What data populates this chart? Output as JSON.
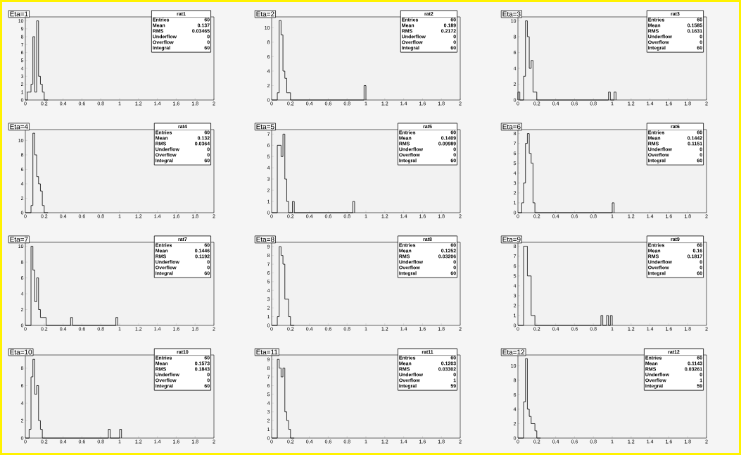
{
  "chart_data": [
    {
      "type": "histogram",
      "title": "Eta=1",
      "bins": [
        0,
        0.02,
        0.04,
        0.06,
        0.08,
        0.1,
        0.12,
        0.14,
        0.16,
        0.18,
        0.2,
        0.22,
        0.24
      ],
      "values": [
        0,
        1,
        1,
        2,
        8,
        1,
        10,
        3,
        2,
        1,
        0,
        0
      ],
      "xlim": [
        0,
        2
      ],
      "ylim": [
        0,
        10.5
      ],
      "xticks": [
        0,
        0.2,
        0.4,
        0.6,
        0.8,
        1,
        1.2,
        1.4,
        1.6,
        1.8,
        2
      ],
      "yticks": [
        0,
        1,
        2,
        3,
        4,
        5,
        6,
        7,
        8,
        9,
        10
      ],
      "annotations": [
        "rat1",
        "Entries",
        "60",
        "Mean",
        "0.137",
        "RMS",
        "0.03465",
        "Underflow",
        "0",
        "Overflow",
        "0",
        "Integral",
        "60"
      ]
    },
    {
      "type": "histogram",
      "title": "Eta=2",
      "bins": [
        0,
        0.02,
        0.04,
        0.06,
        0.08,
        0.1,
        0.12,
        0.14,
        0.16,
        0.18,
        0.2,
        0.22,
        0.24,
        0.98,
        1.0
      ],
      "values": [
        0,
        0,
        0,
        1,
        11,
        9,
        4,
        3,
        1,
        1,
        0,
        0,
        0,
        2
      ],
      "xlim": [
        0,
        2
      ],
      "ylim": [
        0,
        11.5
      ],
      "xticks": [
        0,
        0.2,
        0.4,
        0.6,
        0.8,
        1,
        1.2,
        1.4,
        1.6,
        1.8,
        2
      ],
      "yticks": [
        0,
        2,
        4,
        6,
        8,
        10
      ],
      "annotations": [
        "rat2",
        "Entries",
        "60",
        "Mean",
        "0.189",
        "RMS",
        "0.2172",
        "Underflow",
        "0",
        "Overflow",
        "0",
        "Integral",
        "60"
      ]
    },
    {
      "type": "histogram",
      "title": "Eta=3",
      "bins": [
        0,
        0.02,
        0.04,
        0.06,
        0.08,
        0.1,
        0.12,
        0.14,
        0.16,
        0.18,
        0.2,
        0.22,
        0.24,
        0.96,
        0.98,
        1.02,
        1.04
      ],
      "values": [
        1,
        0,
        0,
        3,
        10,
        8,
        4,
        5,
        1,
        1,
        0,
        0,
        0,
        1,
        0,
        1
      ],
      "xlim": [
        0,
        2
      ],
      "ylim": [
        0,
        10.5
      ],
      "xticks": [
        0,
        0.2,
        0.4,
        0.6,
        0.8,
        1,
        1.2,
        1.4,
        1.6,
        1.8,
        2
      ],
      "yticks": [
        0,
        2,
        4,
        6,
        8,
        10
      ],
      "annotations": [
        "rat3",
        "Entries",
        "60",
        "Mean",
        "0.1585",
        "RMS",
        "0.1631",
        "Underflow",
        "0",
        "Overflow",
        "0",
        "Integral",
        "60"
      ]
    },
    {
      "type": "histogram",
      "title": "Eta=4",
      "bins": [
        0,
        0.02,
        0.04,
        0.06,
        0.08,
        0.1,
        0.12,
        0.14,
        0.16,
        0.18,
        0.2,
        0.22,
        0.24
      ],
      "values": [
        0,
        0,
        0,
        1,
        11,
        8,
        5,
        4,
        3,
        1,
        0,
        0
      ],
      "xlim": [
        0,
        2
      ],
      "ylim": [
        0,
        11.5
      ],
      "xticks": [
        0,
        0.2,
        0.4,
        0.6,
        0.8,
        1,
        1.2,
        1.4,
        1.6,
        1.8,
        2
      ],
      "yticks": [
        0,
        2,
        4,
        6,
        8,
        10
      ],
      "annotations": [
        "rat4",
        "Entries",
        "60",
        "Mean",
        "0.132",
        "RMS",
        "0.0364",
        "Underflow",
        "0",
        "Overflow",
        "0",
        "Integral",
        "60"
      ]
    },
    {
      "type": "histogram",
      "title": "Eta=5",
      "bins": [
        0,
        0.02,
        0.04,
        0.06,
        0.08,
        0.1,
        0.12,
        0.14,
        0.16,
        0.18,
        0.2,
        0.22,
        0.24,
        0.86,
        0.88
      ],
      "values": [
        0,
        0,
        0,
        6,
        6,
        5,
        7,
        3,
        1,
        0,
        0,
        1,
        0,
        1
      ],
      "xlim": [
        0,
        2
      ],
      "ylim": [
        0,
        7.4
      ],
      "xticks": [
        0,
        0.2,
        0.4,
        0.6,
        0.8,
        1,
        1.2,
        1.4,
        1.6,
        1.8,
        2
      ],
      "yticks": [
        0,
        1,
        2,
        3,
        4,
        5,
        6,
        7
      ],
      "annotations": [
        "rat5",
        "Entries",
        "60",
        "Mean",
        "0.1409",
        "RMS",
        "0.09989",
        "Underflow",
        "0",
        "Overflow",
        "0",
        "Integral",
        "60"
      ]
    },
    {
      "type": "histogram",
      "title": "Eta=6",
      "bins": [
        0,
        0.02,
        0.04,
        0.06,
        0.08,
        0.1,
        0.12,
        0.14,
        0.16,
        0.18,
        0.2,
        0.22,
        0.24,
        1.0,
        1.02
      ],
      "values": [
        0,
        0,
        1,
        3,
        7,
        8,
        6,
        5,
        1,
        0,
        0,
        0,
        0,
        1
      ],
      "xlim": [
        0,
        2
      ],
      "ylim": [
        0,
        8.4
      ],
      "xticks": [
        0,
        0.2,
        0.4,
        0.6,
        0.8,
        1,
        1.2,
        1.4,
        1.6,
        1.8,
        2
      ],
      "yticks": [
        0,
        1,
        2,
        3,
        4,
        5,
        6,
        7,
        8
      ],
      "annotations": [
        "rat6",
        "Entries",
        "60",
        "Mean",
        "0.1442",
        "RMS",
        "0.1151",
        "Underflow",
        "0",
        "Overflow",
        "0",
        "Integral",
        "60"
      ]
    },
    {
      "type": "histogram",
      "title": "Eta=7",
      "bins": [
        0,
        0.02,
        0.04,
        0.06,
        0.08,
        0.1,
        0.12,
        0.14,
        0.16,
        0.18,
        0.2,
        0.22,
        0.24,
        0.48,
        0.5,
        0.96,
        0.98
      ],
      "values": [
        0,
        0,
        0,
        10,
        7,
        3,
        6,
        2,
        1,
        1,
        1,
        0,
        0,
        1,
        0,
        1
      ],
      "xlim": [
        0,
        2
      ],
      "ylim": [
        0,
        10.5
      ],
      "xticks": [
        0,
        0.2,
        0.4,
        0.6,
        0.8,
        1,
        1.2,
        1.4,
        1.6,
        1.8,
        2
      ],
      "yticks": [
        0,
        2,
        4,
        6,
        8,
        10
      ],
      "annotations": [
        "rat7",
        "Entries",
        "60",
        "Mean",
        "0.1446",
        "RMS",
        "0.1192",
        "Underflow",
        "0",
        "Overflow",
        "0",
        "Integral",
        "60"
      ]
    },
    {
      "type": "histogram",
      "title": "Eta=8",
      "bins": [
        0,
        0.02,
        0.04,
        0.06,
        0.08,
        0.1,
        0.12,
        0.14,
        0.16,
        0.18,
        0.2,
        0.22,
        0.24
      ],
      "values": [
        0,
        0,
        0,
        1,
        9,
        8,
        7,
        3,
        3,
        1,
        0,
        0
      ],
      "xlim": [
        0,
        2
      ],
      "ylim": [
        0,
        9.5
      ],
      "xticks": [
        0,
        0.2,
        0.4,
        0.6,
        0.8,
        1,
        1.2,
        1.4,
        1.6,
        1.8,
        2
      ],
      "yticks": [
        0,
        1,
        2,
        3,
        4,
        5,
        6,
        7,
        8,
        9
      ],
      "annotations": [
        "rat8",
        "Entries",
        "60",
        "Mean",
        "0.1252",
        "RMS",
        "0.03206",
        "Underflow",
        "0",
        "Overflow",
        "0",
        "Integral",
        "60"
      ]
    },
    {
      "type": "histogram",
      "title": "Eta=9",
      "bins": [
        0,
        0.02,
        0.04,
        0.06,
        0.08,
        0.1,
        0.12,
        0.14,
        0.16,
        0.18,
        0.2,
        0.22,
        0.24,
        0.88,
        0.9,
        0.94,
        0.96,
        0.98,
        1.0
      ],
      "values": [
        0,
        0,
        0,
        8,
        8,
        5,
        5,
        1,
        1,
        0,
        0,
        0,
        0,
        1,
        0,
        1,
        0,
        1
      ],
      "xlim": [
        0,
        2
      ],
      "ylim": [
        0,
        8.4
      ],
      "xticks": [
        0,
        0.2,
        0.4,
        0.6,
        0.8,
        1,
        1.2,
        1.4,
        1.6,
        1.8,
        2
      ],
      "yticks": [
        0,
        1,
        2,
        3,
        4,
        5,
        6,
        7,
        8
      ],
      "annotations": [
        "rat9",
        "Entries",
        "60",
        "Mean",
        "0.16",
        "RMS",
        "0.1817",
        "Underflow",
        "0",
        "Overflow",
        "0",
        "Integral",
        "60"
      ]
    },
    {
      "type": "histogram",
      "title": "Eta=10",
      "bins": [
        0,
        0.02,
        0.04,
        0.06,
        0.08,
        0.1,
        0.12,
        0.14,
        0.16,
        0.18,
        0.2,
        0.22,
        0.24,
        0.88,
        0.9,
        1.0,
        1.02
      ],
      "values": [
        0,
        0,
        1,
        7,
        9,
        5,
        6,
        2,
        1,
        0,
        0,
        0,
        0,
        1,
        0,
        1
      ],
      "xlim": [
        0,
        2
      ],
      "ylim": [
        0,
        9.5
      ],
      "xticks": [
        0,
        0.2,
        0.4,
        0.6,
        0.8,
        1,
        1.2,
        1.4,
        1.6,
        1.8,
        2
      ],
      "yticks": [
        0,
        2,
        4,
        6,
        8
      ],
      "annotations": [
        "rat10",
        "Entries",
        "60",
        "Mean",
        "0.1573",
        "RMS",
        "0.1843",
        "Underflow",
        "0",
        "Overflow",
        "0",
        "Integral",
        "60"
      ]
    },
    {
      "type": "histogram",
      "title": "Eta=11",
      "bins": [
        0,
        0.02,
        0.04,
        0.06,
        0.08,
        0.1,
        0.12,
        0.14,
        0.16,
        0.18,
        0.2,
        0.22,
        0.24
      ],
      "values": [
        0,
        0,
        0,
        9,
        8,
        7,
        8,
        3,
        2,
        1,
        0,
        0
      ],
      "xlim": [
        0,
        2
      ],
      "ylim": [
        0,
        9.5
      ],
      "xticks": [
        0,
        0.2,
        0.4,
        0.6,
        0.8,
        1,
        1.2,
        1.4,
        1.6,
        1.8,
        2
      ],
      "yticks": [
        0,
        1,
        2,
        3,
        4,
        5,
        6,
        7,
        8,
        9
      ],
      "annotations": [
        "rat11",
        "Entries",
        "60",
        "Mean",
        "0.1203",
        "RMS",
        "0.03302",
        "Underflow",
        "0",
        "Overflow",
        "1",
        "Integral",
        "59"
      ]
    },
    {
      "type": "histogram",
      "title": "Eta=12",
      "bins": [
        0,
        0.02,
        0.04,
        0.06,
        0.08,
        0.1,
        0.12,
        0.14,
        0.16,
        0.18,
        0.2,
        0.22,
        0.24
      ],
      "values": [
        0,
        0,
        0,
        5,
        11,
        4,
        3,
        2,
        2,
        1,
        0,
        0
      ],
      "xlim": [
        0,
        2
      ],
      "ylim": [
        0,
        11.5
      ],
      "xticks": [
        0,
        0.2,
        0.4,
        0.6,
        0.8,
        1,
        1.2,
        1.4,
        1.6,
        1.8,
        2
      ],
      "yticks": [
        0,
        2,
        4,
        6,
        8,
        10
      ],
      "annotations": [
        "rat12",
        "Entries",
        "60",
        "Mean",
        "0.1143",
        "RMS",
        "0.03261",
        "Underflow",
        "0",
        "Overflow",
        "1",
        "Integral",
        "59"
      ]
    }
  ]
}
